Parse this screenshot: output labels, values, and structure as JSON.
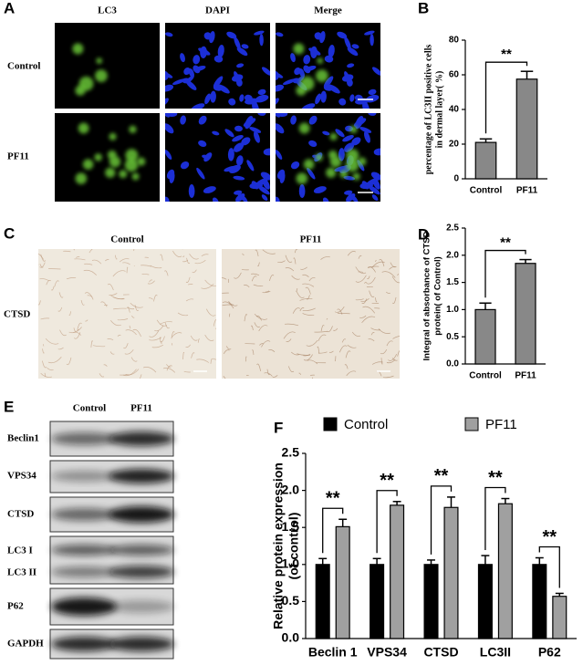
{
  "panels": {
    "A": {
      "label": "A",
      "columns": [
        "LC3",
        "DAPI",
        "Merge"
      ],
      "rows": [
        "Control",
        "PF11"
      ]
    },
    "B": {
      "label": "B"
    },
    "C": {
      "label": "C",
      "columns": [
        "Control",
        "PF11"
      ],
      "rows": [
        "CTSD"
      ]
    },
    "D": {
      "label": "D"
    },
    "E": {
      "label": "E",
      "columns": [
        "Control",
        "PF11"
      ],
      "rows": [
        "Beclin1",
        "VPS34",
        "CTSD",
        "LC3 I",
        "LC3 II",
        "P62",
        "GAPDH"
      ]
    },
    "F": {
      "label": "F"
    }
  },
  "chart_data": [
    {
      "type": "bar",
      "ylabel": [
        "percentage of LC3II positive cells",
        "in dermal layer( %)"
      ],
      "categories": [
        "Control",
        "PF11"
      ],
      "values": [
        21,
        57.5
      ],
      "errors": [
        2,
        4.5
      ],
      "color": "#888888",
      "ylim": [
        0,
        80
      ],
      "yticks": [
        0,
        20,
        40,
        60,
        80
      ],
      "annotations": [
        "**"
      ]
    },
    {
      "type": "bar",
      "ylabel": [
        "Integral of absorbance of CTSD",
        "protein( of Control)"
      ],
      "categories": [
        "Control",
        "PF11"
      ],
      "values": [
        1.0,
        1.85
      ],
      "errors": [
        0.12,
        0.07
      ],
      "color": "#888888",
      "ylim": [
        0,
        2.5
      ],
      "yticks": [
        {
          "value": 0,
          "label": "0.0"
        },
        0.5,
        {
          "value": 1,
          "label": "1.0"
        },
        1.5,
        {
          "value": 2,
          "label": "2.0"
        },
        2.5
      ],
      "annotations": [
        "**"
      ]
    },
    {
      "type": "grouped-bar",
      "ylabel": [
        "Relative protein expression",
        "(of control)"
      ],
      "categories": [
        "Beclin 1",
        "VPS34",
        "CTSD",
        "LC3II",
        "P62"
      ],
      "series": [
        {
          "name": "Control",
          "color": "#000000",
          "values": [
            1.0,
            1.0,
            1.0,
            1.0,
            1.0
          ],
          "errors": [
            0.08,
            0.08,
            0.06,
            0.12,
            0.09
          ]
        },
        {
          "name": "PF11",
          "color": "#a0a0a0",
          "values": [
            1.51,
            1.8,
            1.77,
            1.82,
            0.57
          ],
          "errors": [
            0.1,
            0.05,
            0.14,
            0.07,
            0.04
          ]
        }
      ],
      "ylim": [
        0,
        2.5
      ],
      "yticks": [
        {
          "value": 0,
          "label": "0.0"
        },
        0.5,
        {
          "value": 1,
          "label": "1.0"
        },
        1.5,
        {
          "value": 2,
          "label": "2.0"
        },
        2.5
      ],
      "annotations": [
        "**",
        "**",
        "**",
        "**",
        "**"
      ]
    }
  ]
}
